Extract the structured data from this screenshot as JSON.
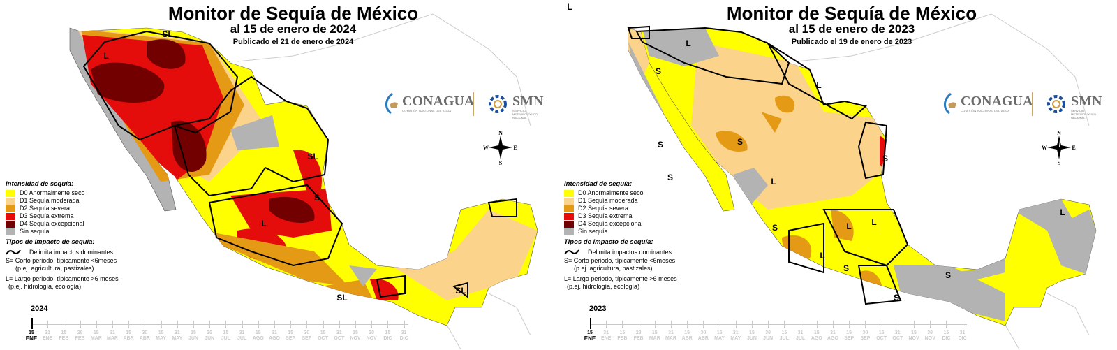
{
  "colors": {
    "D0": "#ffff00",
    "D1": "#fcd38a",
    "D2": "#e59a16",
    "D3": "#e50c0c",
    "D4": "#730000",
    "sin": "#b3b3b3",
    "boundary": "#000000"
  },
  "panels": [
    {
      "title": "Monitor de Sequía de México",
      "subtitle": "al 15 de enero de 2024",
      "published": "Publicado el 21 de enero de 2024",
      "year": "2024",
      "region_labels": [
        "L",
        "SL",
        "SL",
        "L",
        "S",
        "SL",
        "SL"
      ]
    },
    {
      "title": "Monitor de Sequía de México",
      "subtitle": "al 15 de enero de 2023",
      "published": "Publicado el 19 de enero de 2023",
      "year": "2023",
      "region_labels": [
        "L",
        "L",
        "S",
        "L",
        "S",
        "S",
        "S",
        "S",
        "L",
        "S",
        "L",
        "L",
        "L",
        "S",
        "S",
        "S",
        "L"
      ]
    }
  ],
  "logos": {
    "conagua": "CONAGUA",
    "conagua_sub": "COMISIÓN NACIONAL DEL AGUA",
    "smn": "SMN",
    "smn_sub": "SERVICIO METEOROLÓGICO NACIONAL"
  },
  "compass": {
    "n": "N",
    "s": "S",
    "e": "E",
    "w": "W"
  },
  "legend": {
    "heading": "Intensidad de sequía:",
    "items": [
      {
        "code": "D0",
        "label": "D0 Anormalmente seco"
      },
      {
        "code": "D1",
        "label": "D1 Sequía moderada"
      },
      {
        "code": "D2",
        "label": "D2 Sequía severa"
      },
      {
        "code": "D3",
        "label": "D3 Sequía extrema"
      },
      {
        "code": "D4",
        "label": "D4 Sequía excepcional"
      },
      {
        "code": "sin",
        "label": "Sin sequía"
      }
    ],
    "impact_heading": "Tipos de impacto de sequía:",
    "boundary_label": "Delimita impactos dominantes",
    "short_label": "S= Corto periodo, típicamente <6meses",
    "short_example": "(p.ej. agricultura, pastizales)",
    "long_label": "L= Largo periodo, típicamente >6 meses",
    "long_example": "(p.ej. hidrología, ecología)"
  },
  "timeline": {
    "current_index": 0,
    "ticks": [
      {
        "day": "15",
        "month": "ENE"
      },
      {
        "day": "31",
        "month": "ENE"
      },
      {
        "day": "15",
        "month": "FEB"
      },
      {
        "day": "28",
        "month": "FEB"
      },
      {
        "day": "15",
        "month": "MAR"
      },
      {
        "day": "31",
        "month": "MAR"
      },
      {
        "day": "15",
        "month": "ABR"
      },
      {
        "day": "30",
        "month": "ABR"
      },
      {
        "day": "15",
        "month": "MAY"
      },
      {
        "day": "31",
        "month": "MAY"
      },
      {
        "day": "15",
        "month": "JUN"
      },
      {
        "day": "30",
        "month": "JUN"
      },
      {
        "day": "15",
        "month": "JUL"
      },
      {
        "day": "31",
        "month": "JUL"
      },
      {
        "day": "15",
        "month": "AGO"
      },
      {
        "day": "31",
        "month": "AGO"
      },
      {
        "day": "15",
        "month": "SEP"
      },
      {
        "day": "30",
        "month": "SEP"
      },
      {
        "day": "15",
        "month": "OCT"
      },
      {
        "day": "31",
        "month": "OCT"
      },
      {
        "day": "15",
        "month": "NOV"
      },
      {
        "day": "30",
        "month": "NOV"
      },
      {
        "day": "15",
        "month": "DIC"
      },
      {
        "day": "31",
        "month": "DIC"
      }
    ]
  }
}
